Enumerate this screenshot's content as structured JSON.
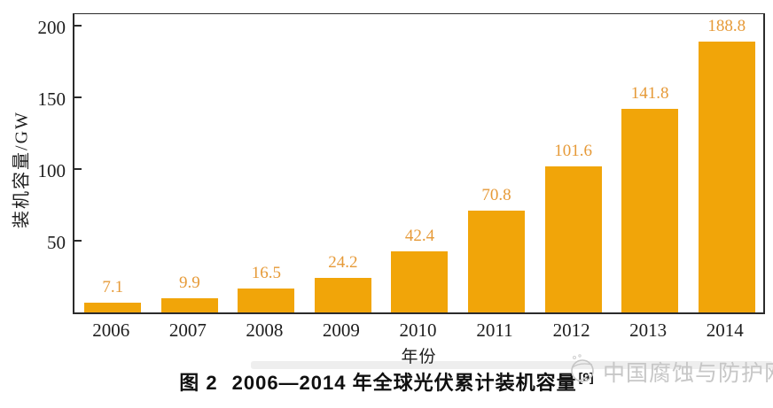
{
  "chart_data": {
    "type": "bar",
    "categories": [
      "2006",
      "2007",
      "2008",
      "2009",
      "2010",
      "2011",
      "2012",
      "2013",
      "2014"
    ],
    "values": [
      7.1,
      9.9,
      16.5,
      24.2,
      42.4,
      70.8,
      101.6,
      141.8,
      188.8
    ],
    "title": "",
    "xlabel": "年份",
    "ylabel": "装机容量/GW",
    "ylim": [
      0,
      208.6
    ],
    "yticks": [
      50,
      100,
      150,
      200
    ],
    "grid": false,
    "legend_position": "none",
    "bar_color": "#F1A509",
    "value_label_color": "#E69A38",
    "axis_color": "#2b2b2b"
  },
  "caption": {
    "prefix": "图 2",
    "text": "2006—2014 年全球光伏累计装机容量",
    "reference": "[9]"
  },
  "watermark": {
    "text": "中国腐蚀与防护网",
    "logo": "globe-sketch-icon",
    "color": "#c7c7c7"
  }
}
